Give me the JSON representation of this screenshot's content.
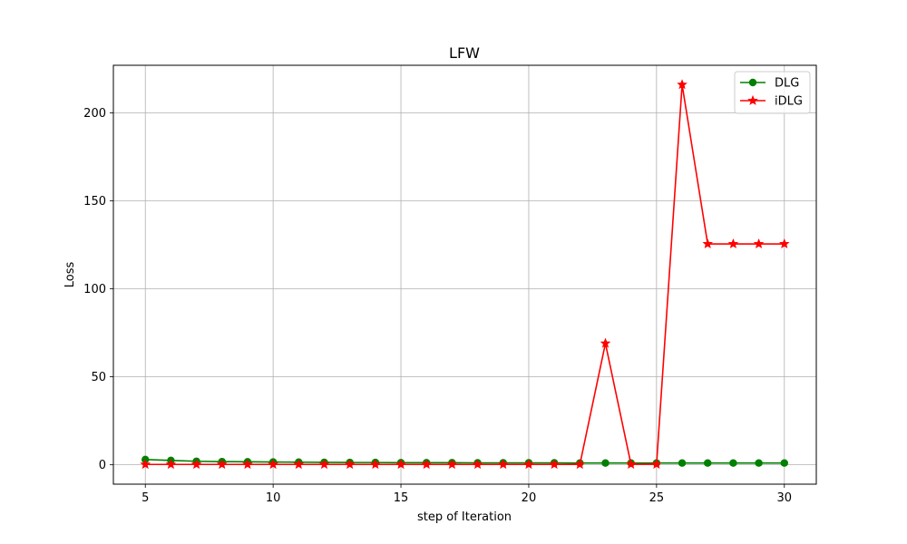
{
  "chart_data": {
    "type": "line",
    "title": "LFW",
    "xlabel": "step of Iteration",
    "ylabel": "Loss",
    "xlim": [
      3.75,
      31.25
    ],
    "ylim": [
      -11,
      227
    ],
    "x": [
      5,
      6,
      7,
      8,
      9,
      10,
      11,
      12,
      13,
      14,
      15,
      16,
      17,
      18,
      19,
      20,
      21,
      22,
      23,
      24,
      25,
      26,
      27,
      28,
      29,
      30
    ],
    "xticks": [
      5,
      10,
      15,
      20,
      25,
      30
    ],
    "yticks": [
      0,
      50,
      100,
      150,
      200
    ],
    "grid": true,
    "legend_position": "top-right",
    "series": [
      {
        "name": "DLG",
        "color": "#008000",
        "marker": "circle",
        "values": [
          3.0,
          2.5,
          2.0,
          1.8,
          1.7,
          1.6,
          1.5,
          1.4,
          1.3,
          1.3,
          1.2,
          1.2,
          1.2,
          1.1,
          1.1,
          1.1,
          1.1,
          1.0,
          1.0,
          1.0,
          1.0,
          1.0,
          1.0,
          1.0,
          1.0,
          1.0
        ]
      },
      {
        "name": "iDLG",
        "color": "#ff0000",
        "marker": "star",
        "values": [
          0.2,
          0.2,
          0.2,
          0.2,
          0.2,
          0.2,
          0.2,
          0.2,
          0.2,
          0.2,
          0.2,
          0.2,
          0.2,
          0.2,
          0.2,
          0.2,
          0.2,
          0.2,
          69,
          0.3,
          0.3,
          216,
          125.5,
          125.5,
          125.5,
          125.5
        ]
      }
    ]
  }
}
